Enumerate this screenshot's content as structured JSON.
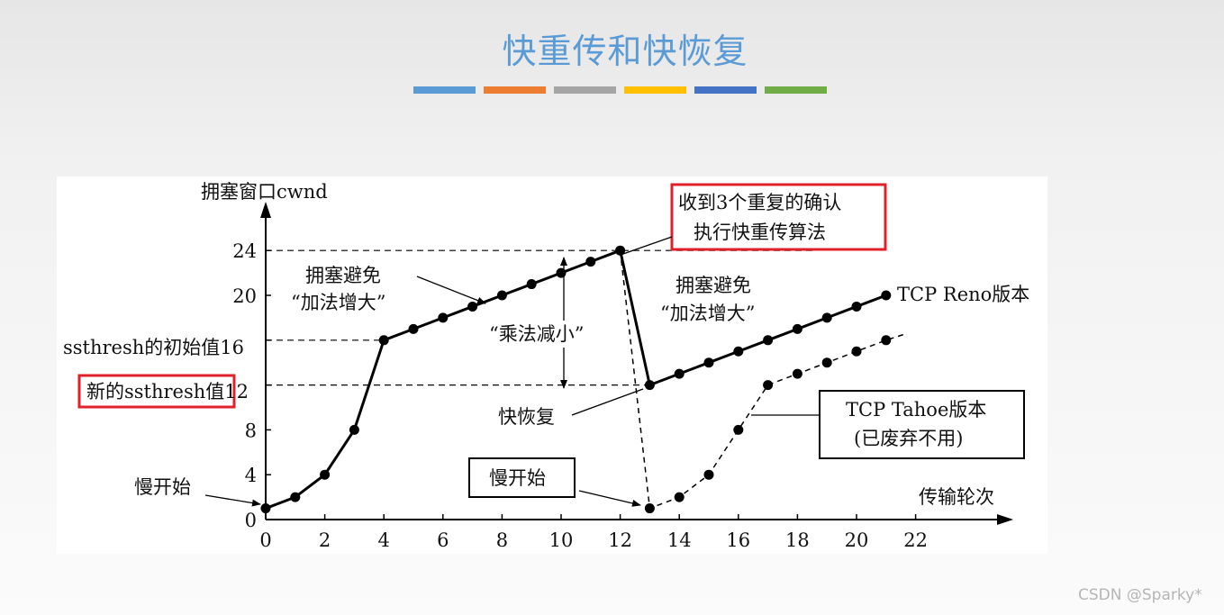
{
  "slide": {
    "title": "快重传和快恢复",
    "color_bar": [
      "#5b9bd5",
      "#ed7d31",
      "#a5a5a5",
      "#ffc000",
      "#4472c4",
      "#70ad47"
    ]
  },
  "watermark": "CSDN @Sparky*",
  "chart_data": {
    "type": "line",
    "ylabel": "拥塞窗口cwnd",
    "xlabel": "传输轮次",
    "x_ticks": [
      "0",
      "2",
      "4",
      "6",
      "8",
      "10",
      "12",
      "14",
      "16",
      "18",
      "20",
      "22"
    ],
    "y_ticks": [
      "0",
      "4",
      "8",
      "12",
      "16",
      "20",
      "24"
    ],
    "xlim": [
      0,
      22
    ],
    "ylim": [
      0,
      24
    ],
    "reference_lines": [
      {
        "y": 24,
        "x_from": 0,
        "x_to": 18.5
      },
      {
        "y": 16,
        "x_from": 0,
        "x_to": 4
      },
      {
        "y": 12,
        "x_from": 0,
        "x_to": 13
      }
    ],
    "y_side_labels": {
      "ssthresh_initial": "ssthresh的初始值16",
      "ssthresh_new": "新的ssthresh值12"
    },
    "series": [
      {
        "name": "TCP Reno版本",
        "style": "solid",
        "points": [
          [
            0,
            1
          ],
          [
            1,
            2
          ],
          [
            2,
            4
          ],
          [
            3,
            8
          ],
          [
            4,
            16
          ],
          [
            5,
            17
          ],
          [
            6,
            18
          ],
          [
            7,
            19
          ],
          [
            8,
            20
          ],
          [
            9,
            21
          ],
          [
            10,
            22
          ],
          [
            11,
            23
          ],
          [
            12,
            24
          ],
          [
            13,
            12
          ],
          [
            14,
            13
          ],
          [
            15,
            14
          ],
          [
            16,
            15
          ],
          [
            17,
            16
          ],
          [
            18,
            17
          ],
          [
            19,
            18
          ],
          [
            20,
            19
          ],
          [
            21,
            20
          ]
        ]
      },
      {
        "name": "TCP Tahoe版本",
        "note": "(已废弃不用)",
        "style": "dashed",
        "points": [
          [
            12,
            24
          ],
          [
            13,
            1
          ],
          [
            14,
            2
          ],
          [
            15,
            4
          ],
          [
            16,
            8
          ],
          [
            17,
            12
          ],
          [
            18,
            13
          ],
          [
            19,
            14
          ],
          [
            20,
            15
          ],
          [
            21,
            16
          ]
        ],
        "extend_to": [
          21.7,
          16.6
        ]
      }
    ],
    "annotations": {
      "dup_ack": [
        "收到3个重复的确认",
        "执行快重传算法"
      ],
      "ca_left": [
        "拥塞避免",
        "“加法增大”"
      ],
      "ca_right": [
        "拥塞避免",
        "“加法增大”"
      ],
      "mult_decrease": "“乘法减小”",
      "fast_recovery": "快恢复",
      "slow_start_left": "慢开始",
      "slow_start_right": "慢开始"
    }
  }
}
